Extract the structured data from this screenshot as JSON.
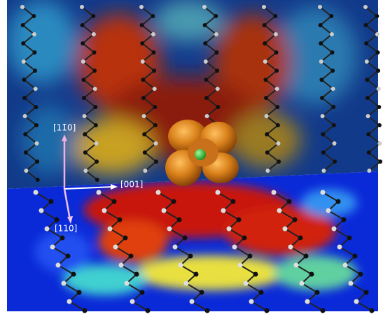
{
  "axes": [
    {
      "label": "[11̄0]"
    },
    {
      "label": "[001]"
    },
    {
      "label": "[110]"
    }
  ]
}
